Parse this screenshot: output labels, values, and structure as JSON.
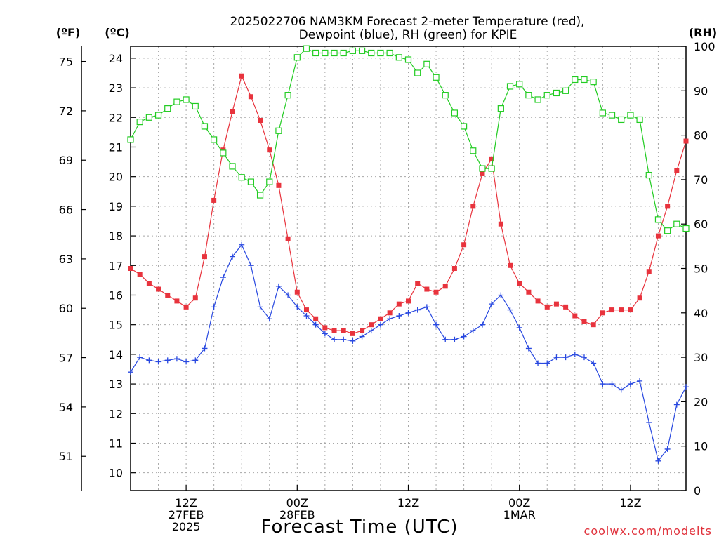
{
  "chart_data": {
    "type": "line",
    "title_line1": "2025022706 NAM3KM Forecast 2-meter Temperature (red),",
    "title_line2": "Dewpoint (blue), RH (green) for KPIE",
    "xlabel": "Forecast Time (UTC)",
    "credit": "coolwx.com/modelts",
    "units": {
      "left_f": "(ºF)",
      "left_c": "(ºC)",
      "right_rh": "(RH)"
    },
    "x_ticks": [
      {
        "hour": 12,
        "lines": [
          "12Z",
          "27FEB",
          "2025"
        ]
      },
      {
        "hour": 24,
        "lines": [
          "00Z",
          "28FEB"
        ]
      },
      {
        "hour": 36,
        "lines": [
          "12Z"
        ]
      },
      {
        "hour": 48,
        "lines": [
          "00Z",
          "1MAR"
        ]
      },
      {
        "hour": 60,
        "lines": [
          "12Z"
        ]
      }
    ],
    "xlim": [
      6,
      66
    ],
    "ylim_c": [
      9.4,
      24.4
    ],
    "ylim_rh": [
      0,
      100
    ],
    "y_ticks_f": [
      51,
      54,
      57,
      60,
      63,
      66,
      69,
      72,
      75
    ],
    "y_ticks_c": [
      10,
      11,
      12,
      13,
      14,
      15,
      16,
      17,
      18,
      19,
      20,
      21,
      22,
      23,
      24
    ],
    "y_ticks_rh": [
      0,
      10,
      20,
      30,
      40,
      50,
      60,
      70,
      80,
      90,
      100
    ],
    "colors": {
      "temperature": "#e8333d",
      "dewpoint": "#2848e0",
      "rh": "#22cc22"
    },
    "series": [
      {
        "name": "Temperature",
        "units": "C",
        "color": "#e8333d",
        "marker": "filled-square",
        "x": [
          6,
          7,
          8,
          9,
          10,
          11,
          12,
          13,
          14,
          15,
          16,
          17,
          18,
          19,
          20,
          21,
          22,
          23,
          24,
          25,
          26,
          27,
          28,
          29,
          30,
          31,
          32,
          33,
          34,
          35,
          36,
          37,
          38,
          39,
          40,
          41,
          42,
          43,
          44,
          45,
          46,
          47,
          48,
          49,
          50,
          51,
          52,
          53,
          54,
          55,
          56,
          57,
          58,
          59,
          60,
          61,
          62,
          63,
          64,
          65,
          66
        ],
        "values": [
          16.9,
          16.7,
          16.4,
          16.2,
          16.0,
          15.8,
          15.6,
          15.9,
          17.3,
          19.2,
          20.9,
          22.2,
          23.4,
          22.7,
          21.9,
          20.9,
          19.7,
          17.9,
          16.1,
          15.5,
          15.2,
          14.9,
          14.8,
          14.8,
          14.7,
          14.8,
          15.0,
          15.2,
          15.4,
          15.7,
          15.8,
          16.4,
          16.2,
          16.1,
          16.3,
          16.9,
          17.7,
          19.0,
          20.1,
          20.6,
          18.4,
          17.0,
          16.4,
          16.1,
          15.8,
          15.6,
          15.7,
          15.6,
          15.3,
          15.1,
          15.0,
          15.4,
          15.5,
          15.5,
          15.5,
          15.9,
          16.8,
          18.0,
          19.0,
          20.2,
          21.2
        ]
      },
      {
        "name": "Dewpoint",
        "units": "C",
        "color": "#2848e0",
        "marker": "plus",
        "x": [
          6,
          7,
          8,
          9,
          10,
          11,
          12,
          13,
          14,
          15,
          16,
          17,
          18,
          19,
          20,
          21,
          22,
          23,
          24,
          25,
          26,
          27,
          28,
          29,
          30,
          31,
          32,
          33,
          34,
          35,
          36,
          37,
          38,
          39,
          40,
          41,
          42,
          43,
          44,
          45,
          46,
          47,
          48,
          49,
          50,
          51,
          52,
          53,
          54,
          55,
          56,
          57,
          58,
          59,
          60,
          61,
          62,
          63,
          64,
          65,
          66
        ],
        "values": [
          13.4,
          13.9,
          13.8,
          13.75,
          13.8,
          13.85,
          13.75,
          13.8,
          14.2,
          15.6,
          16.6,
          17.3,
          17.7,
          17.0,
          15.6,
          15.2,
          16.3,
          16.0,
          15.6,
          15.3,
          15.0,
          14.7,
          14.5,
          14.5,
          14.45,
          14.6,
          14.8,
          15.0,
          15.2,
          15.3,
          15.4,
          15.5,
          15.6,
          15.0,
          14.5,
          14.5,
          14.6,
          14.8,
          15.0,
          15.7,
          16.0,
          15.5,
          14.9,
          14.2,
          13.7,
          13.7,
          13.9,
          13.9,
          14.0,
          13.9,
          13.7,
          13.0,
          13.0,
          12.8,
          13.0,
          13.1,
          11.7,
          10.4,
          10.8,
          12.3,
          12.9
        ]
      },
      {
        "name": "RH",
        "units": "%",
        "color": "#22cc22",
        "marker": "open-square",
        "x": [
          6,
          7,
          8,
          9,
          10,
          11,
          12,
          13,
          14,
          15,
          16,
          17,
          18,
          19,
          20,
          21,
          22,
          23,
          24,
          25,
          26,
          27,
          28,
          29,
          30,
          31,
          32,
          33,
          34,
          35,
          36,
          37,
          38,
          39,
          40,
          41,
          42,
          43,
          44,
          45,
          46,
          47,
          48,
          49,
          50,
          51,
          52,
          53,
          54,
          55,
          56,
          57,
          58,
          59,
          60,
          61,
          62,
          63,
          64,
          65,
          66
        ],
        "values": [
          79,
          83,
          84,
          84.5,
          86,
          87.5,
          88,
          86.5,
          82,
          79,
          76,
          73,
          70.5,
          69.5,
          66.5,
          69.5,
          81,
          89,
          97.5,
          99.5,
          98.5,
          98.5,
          98.5,
          98.5,
          99,
          99,
          98.5,
          98.5,
          98.5,
          97.5,
          97,
          94,
          96,
          93,
          89,
          85,
          82,
          76.5,
          72.5,
          72.5,
          86,
          91,
          91.5,
          89,
          88,
          89,
          89.5,
          90,
          92.5,
          92.5,
          92,
          85,
          84.5,
          83.5,
          84.5,
          83.5,
          71,
          61,
          58.5,
          60,
          59
        ]
      }
    ]
  }
}
